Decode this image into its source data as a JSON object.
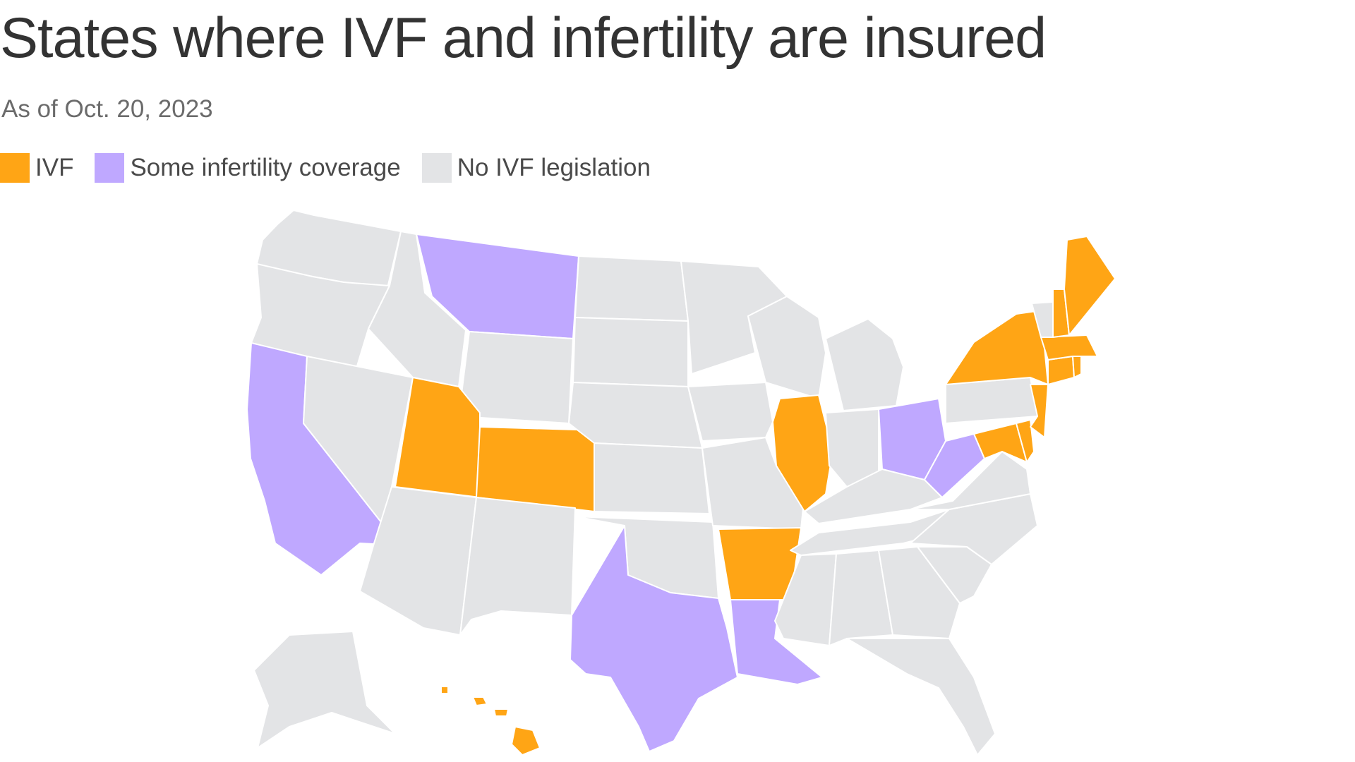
{
  "title": "States where IVF and infertility are insured",
  "subtitle": "As of Oct. 20, 2023",
  "legend": [
    {
      "label": "IVF",
      "color": "#ffa515"
    },
    {
      "label": "Some infertility coverage",
      "color": "#bfa8ff"
    },
    {
      "label": "No IVF legislation",
      "color": "#e3e4e6"
    }
  ],
  "map": {
    "ivf_states": [
      "HI",
      "UT",
      "CO",
      "IL",
      "AR",
      "NY",
      "ME",
      "NH",
      "MA",
      "RI",
      "CT",
      "NJ",
      "DE",
      "MD"
    ],
    "some_coverage_states": [
      "MT",
      "CA",
      "TX",
      "LA",
      "OH",
      "WV"
    ]
  }
}
